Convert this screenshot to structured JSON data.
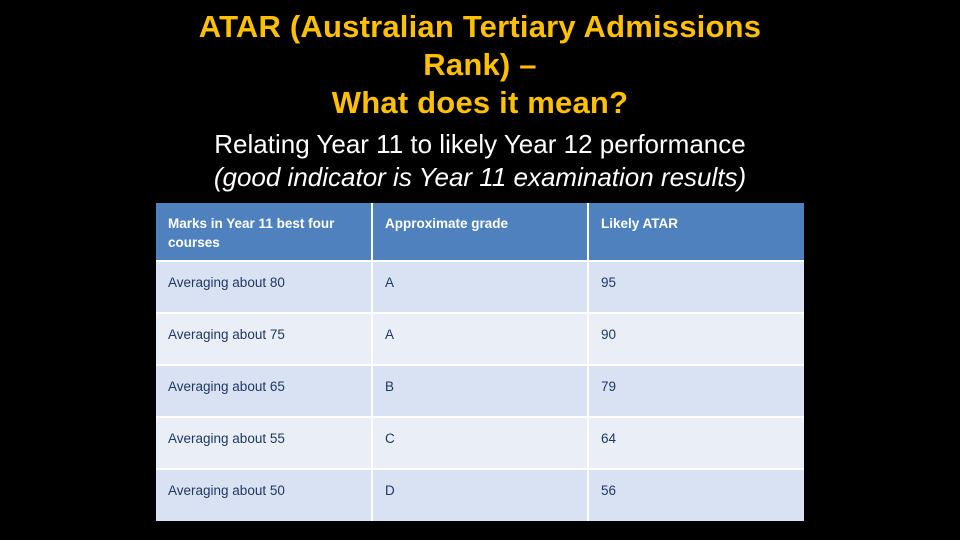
{
  "slide": {
    "title_lines": [
      "ATAR (Australian Tertiary Admissions",
      "Rank) –",
      "What does it mean?"
    ],
    "subtitle": "Relating Year 11 to likely Year 12 performance",
    "subtitle_note": "(good indicator is Year 11 examination results)"
  },
  "table": {
    "headers": [
      "Marks in Year 11 best four courses",
      "Approximate grade",
      "Likely ATAR"
    ],
    "rows": [
      [
        "Averaging about 80",
        "A",
        "95"
      ],
      [
        "Averaging about 75",
        "A",
        "90"
      ],
      [
        "Averaging about 65",
        "B",
        "79"
      ],
      [
        "Averaging about 55",
        "C",
        "64"
      ],
      [
        "Averaging about 50",
        "D",
        "56"
      ]
    ]
  },
  "colors": {
    "background": "#000000",
    "title_text": "#FFC000",
    "subtitle_text": "#FFFFFF",
    "table_header_bg": "#4E81BD",
    "table_header_text": "#FFFFFF",
    "row_band_dark": "#D9E2F3",
    "row_band_light": "#EAEEF7",
    "table_body_text": "#1F3864"
  }
}
